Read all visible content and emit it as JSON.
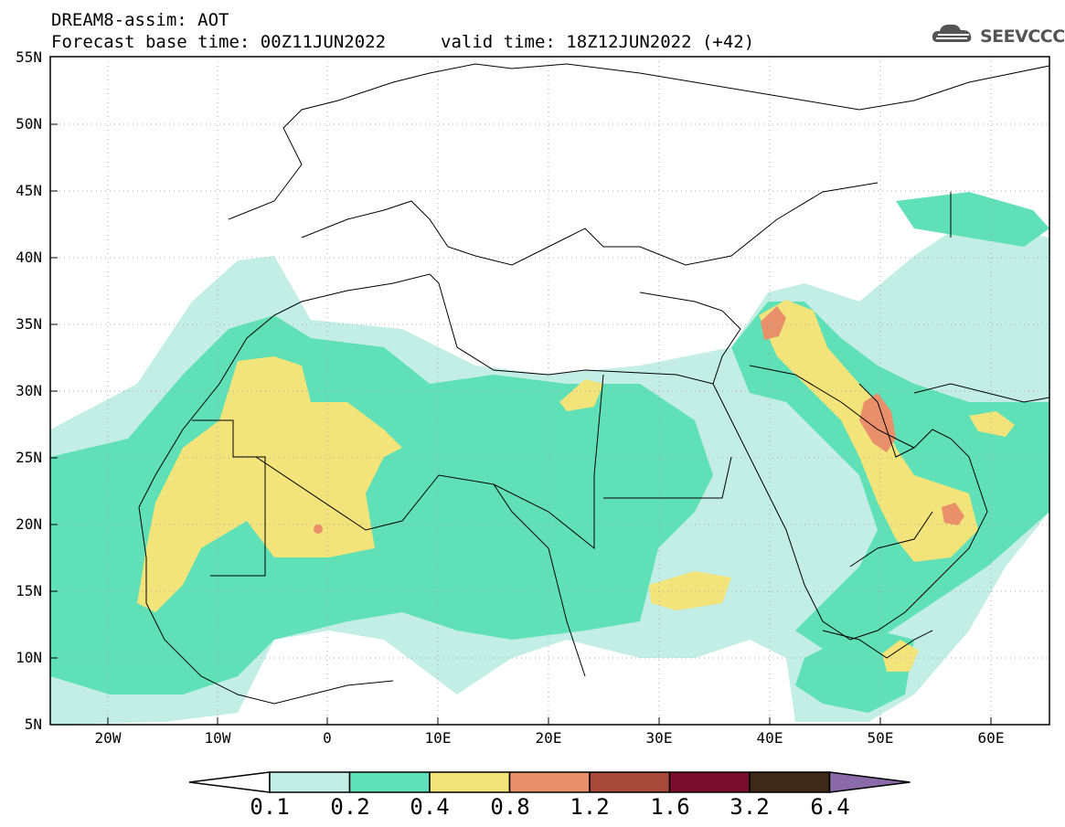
{
  "header": {
    "title": "DREAM8-assim: AOT",
    "base_time": "Forecast base time: 00Z11JUN2022",
    "valid_time": "valid time: 18Z12JUN2022 (+42)",
    "logo_text": "SEEVCCC"
  },
  "map": {
    "lat_labels": [
      "55N",
      "50N",
      "45N",
      "40N",
      "35N",
      "30N",
      "25N",
      "20N",
      "15N",
      "10N",
      "5N"
    ],
    "lon_labels": [
      "20W",
      "10W",
      "0",
      "10E",
      "20E",
      "30E",
      "40E",
      "50E",
      "60E"
    ],
    "lat_range": [
      5,
      55
    ],
    "lon_range": [
      -25,
      65
    ],
    "grid": "dotted"
  },
  "colorbar": {
    "labels": [
      "0.1",
      "0.2",
      "0.4",
      "0.8",
      "1.2",
      "1.6",
      "3.2",
      "6.4"
    ],
    "colors": [
      "#ffffff",
      "#c2eee6",
      "#5fe0b6",
      "#f2e47a",
      "#e9906b",
      "#a6493a",
      "#7a0d2e",
      "#3d2918",
      "#8a6aa8"
    ]
  }
}
